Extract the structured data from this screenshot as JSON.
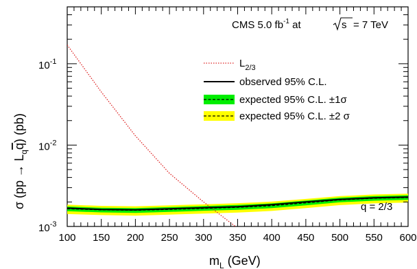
{
  "chart_data": {
    "type": "line",
    "title": "",
    "annotation_top": {
      "experiment": "CMS",
      "lumi_value": "5.0",
      "lumi_unit": "fb",
      "lumi_exp": "-1",
      "at_text": "at",
      "sqrt_s": "s",
      "energy": "= 7 TeV"
    },
    "annotation_bottom": "q = 2/3",
    "xlabel": {
      "main": "m",
      "sub": "L",
      "unit": " (GeV)"
    },
    "ylabel": {
      "sigma": "σ",
      "lparen": " (pp ",
      "arrow": "→",
      "L": " L",
      "Lsub": "q",
      "qbar": "q",
      ")": ")",
      "unit": " (pb)"
    },
    "xlim": [
      100,
      600
    ],
    "ylim": [
      0.001,
      0.5
    ],
    "yscale": "log",
    "x_ticks": [
      "100",
      "150",
      "200",
      "250",
      "300",
      "350",
      "400",
      "450",
      "500",
      "550",
      "600"
    ],
    "y_ticks": [
      {
        "base": "10",
        "exp": "-1",
        "value": 0.1
      },
      {
        "base": "10",
        "exp": "-2",
        "value": 0.01
      },
      {
        "base": "10",
        "exp": "-3",
        "value": 0.001
      }
    ],
    "legend": {
      "placement": "upper-right",
      "entries": [
        {
          "label_main": "L",
          "label_sub": "2/3",
          "style": "dotted",
          "color": "#dd2222"
        },
        {
          "label": "observed 95% C.L.",
          "style": "solid",
          "color": "#000000"
        },
        {
          "label": "expected 95% C.L. ±1σ",
          "style": "band",
          "color": "#00ee00"
        },
        {
          "label": "expected 95% C.L. ±2 σ",
          "style": "band",
          "color": "#ffff00"
        }
      ]
    },
    "series": [
      {
        "name": "L2/3",
        "style": "dotted",
        "color": "#dd2222",
        "x": [
          100,
          150,
          200,
          250,
          300,
          350
        ],
        "y": [
          0.17,
          0.045,
          0.013,
          0.0045,
          0.002,
          0.00095
        ]
      },
      {
        "name": "observed 95% C.L.",
        "style": "solid",
        "color": "#000000",
        "x": [
          100,
          150,
          200,
          250,
          300,
          350,
          400,
          450,
          500,
          550,
          600
        ],
        "y": [
          0.00168,
          0.00162,
          0.0016,
          0.00165,
          0.0017,
          0.00175,
          0.00185,
          0.002,
          0.00215,
          0.00225,
          0.0023
        ]
      },
      {
        "name": "expected 95% C.L.",
        "style": "dashed",
        "color": "#000000",
        "x": [
          100,
          150,
          200,
          250,
          300,
          350,
          400,
          450,
          500,
          550,
          600
        ],
        "y": [
          0.00165,
          0.0016,
          0.00158,
          0.00162,
          0.00167,
          0.00172,
          0.0018,
          0.00195,
          0.00212,
          0.00222,
          0.00227
        ]
      }
    ],
    "bands": [
      {
        "name": "±2σ",
        "color": "#ffff00",
        "x": [
          100,
          150,
          200,
          250,
          300,
          350,
          400,
          450,
          500,
          550,
          600
        ],
        "low": [
          0.00142,
          0.00138,
          0.00136,
          0.0014,
          0.00144,
          0.00148,
          0.00155,
          0.00168,
          0.00183,
          0.00192,
          0.00197
        ],
        "high": [
          0.00185,
          0.00179,
          0.00177,
          0.00182,
          0.00187,
          0.00193,
          0.00202,
          0.00218,
          0.00236,
          0.00247,
          0.00253
        ]
      },
      {
        "name": "±1σ",
        "color": "#00ee00",
        "x": [
          100,
          150,
          200,
          250,
          300,
          350,
          400,
          450,
          500,
          550,
          600
        ],
        "low": [
          0.00154,
          0.00149,
          0.00147,
          0.00151,
          0.00156,
          0.0016,
          0.00168,
          0.00182,
          0.00198,
          0.00207,
          0.00212
        ],
        "high": [
          0.00176,
          0.0017,
          0.00168,
          0.00173,
          0.00178,
          0.00184,
          0.00192,
          0.00208,
          0.00226,
          0.00236,
          0.00242
        ]
      }
    ]
  }
}
